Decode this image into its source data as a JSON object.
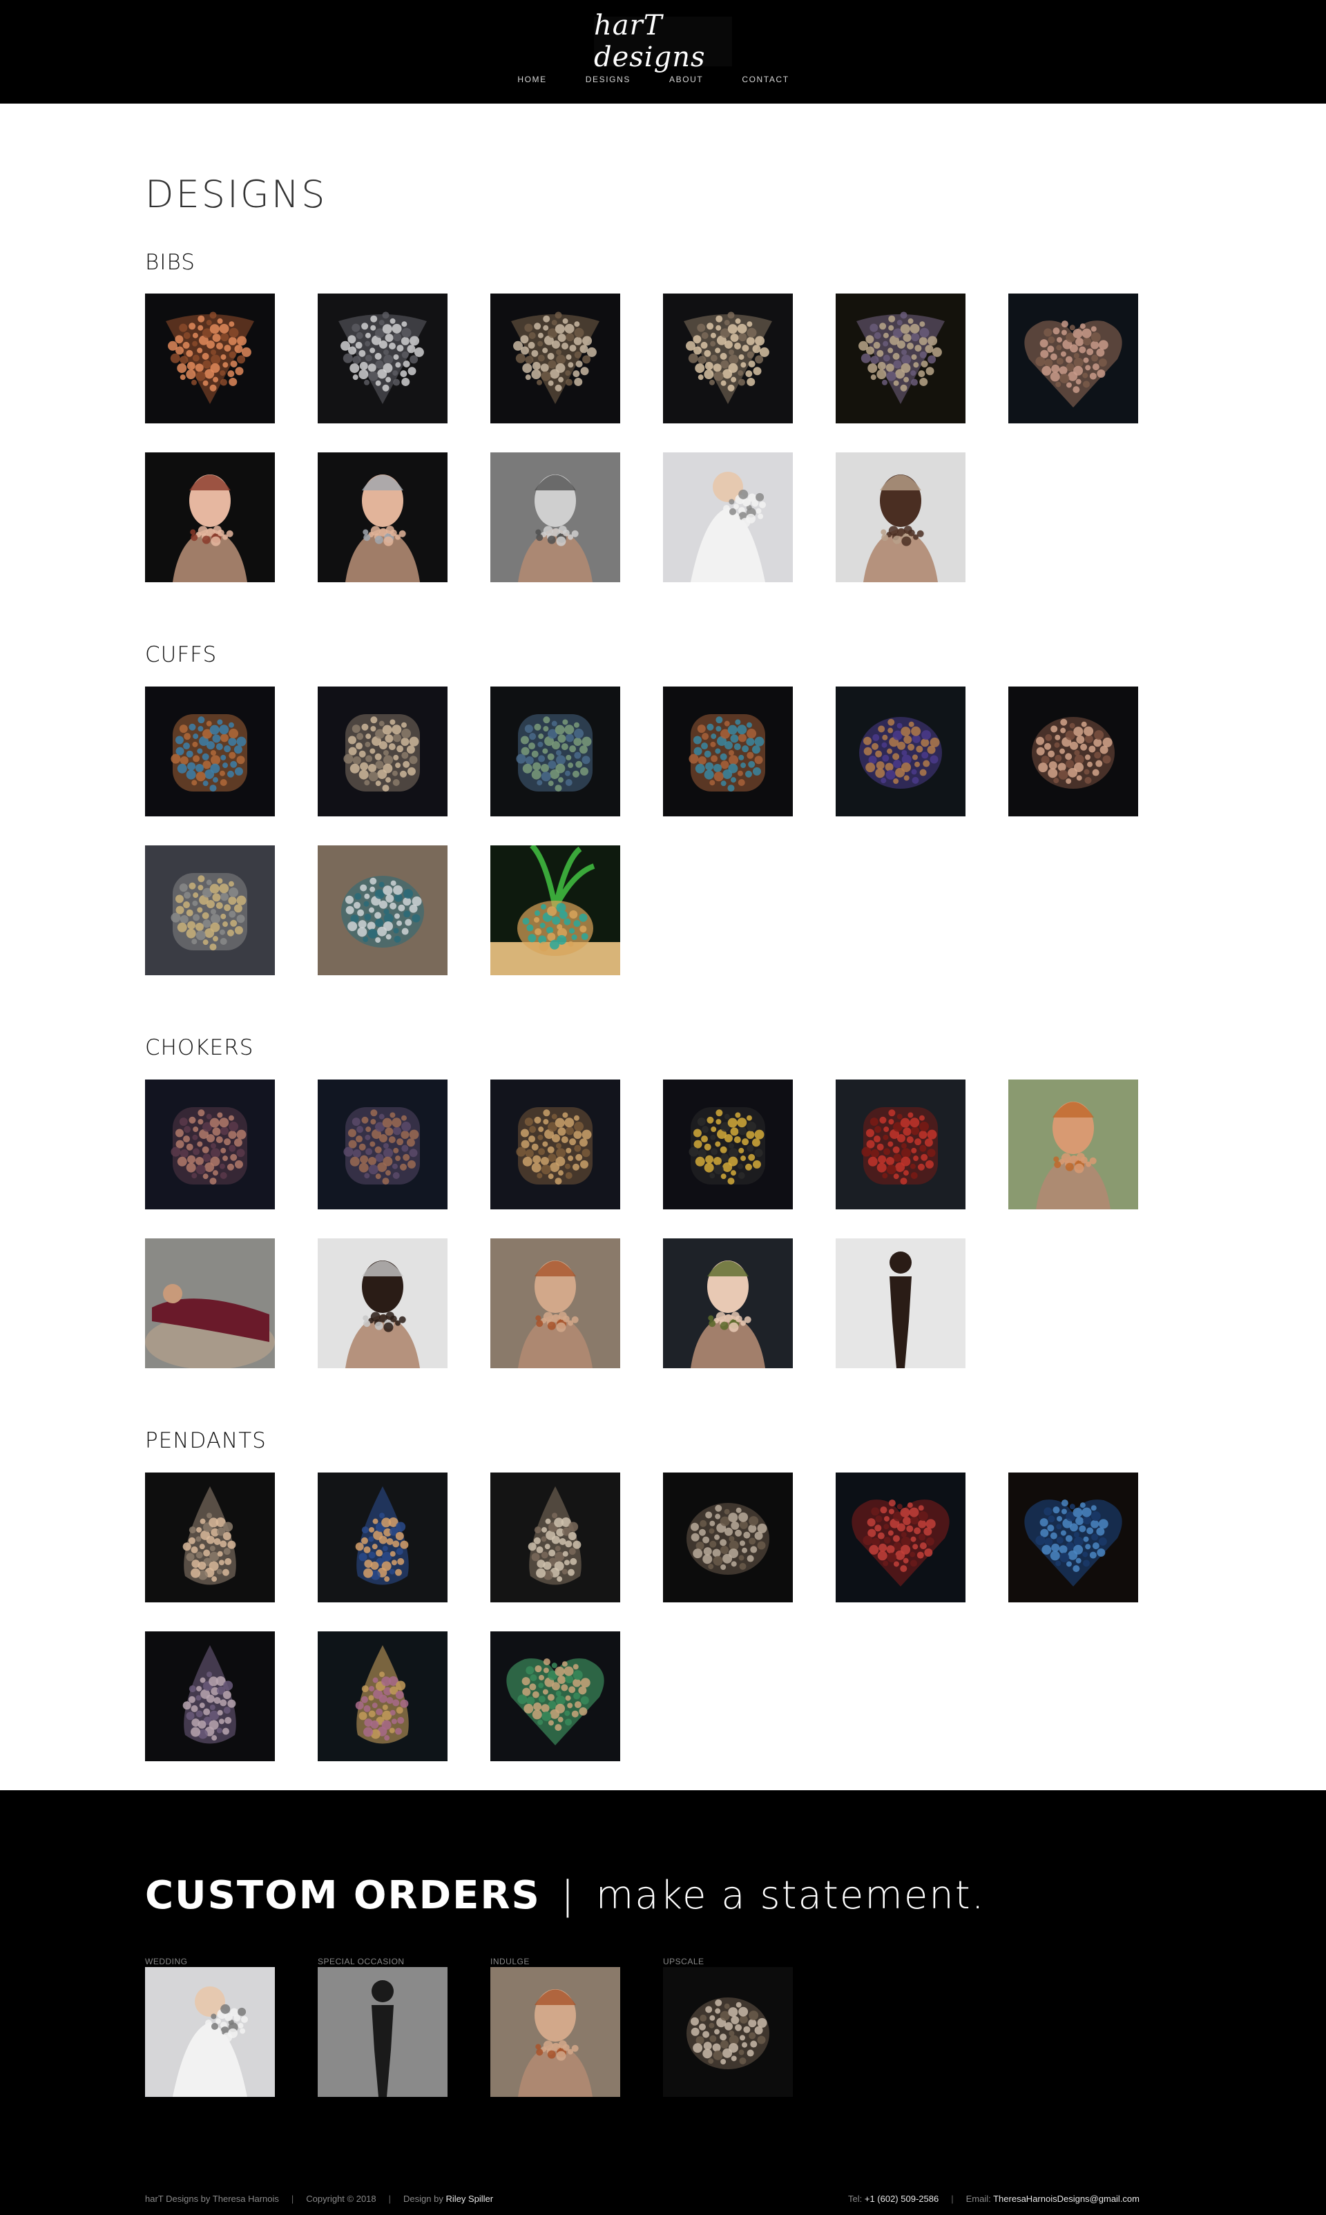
{
  "header": {
    "logo_text": "harT designs",
    "nav": [
      "HOME",
      "DESIGNS",
      "ABOUT",
      "CONTACT"
    ]
  },
  "page": {
    "title": "DESIGNS",
    "sections": [
      {
        "title": "BIBS",
        "items": [
          {
            "bg": "#0c0c0e",
            "kind": "bib",
            "c1": "#e08a5a",
            "c2": "#8a4a2a"
          },
          {
            "bg": "#121214",
            "kind": "bib",
            "c1": "#cfcfd0",
            "c2": "#5a5a60"
          },
          {
            "bg": "#0d0d10",
            "kind": "bib",
            "c1": "#c9b9a2",
            "c2": "#6e5a45"
          },
          {
            "bg": "#101012",
            "kind": "bib",
            "c1": "#d8c3a5",
            "c2": "#7a6a58"
          },
          {
            "bg": "#14120c",
            "kind": "bib",
            "c1": "#b9a68a",
            "c2": "#6a5c7a"
          },
          {
            "bg": "#0d1218",
            "kind": "heart",
            "c1": "#c89a8a",
            "c2": "#7a5a4a"
          },
          {
            "bg": "#0d0d0d",
            "kind": "portrait",
            "c1": "#e6b7a0",
            "c2": "#8a3a2a"
          },
          {
            "bg": "#0f0f10",
            "kind": "portrait",
            "c1": "#e2b49a",
            "c2": "#a0a6ae"
          },
          {
            "bg": "#7a7a7a",
            "kind": "portrait",
            "c1": "#cfcfcf",
            "c2": "#505050"
          },
          {
            "bg": "#d9d9dc",
            "kind": "bride",
            "c1": "#f2f2f2",
            "c2": "#8a8a8a"
          },
          {
            "bg": "#dcdcdc",
            "kind": "portrait",
            "c1": "#4a2e22",
            "c2": "#b8a08a"
          }
        ]
      },
      {
        "title": "CUFFS",
        "items": [
          {
            "bg": "#0c0c10",
            "kind": "cuff",
            "c1": "#3c7fa8",
            "c2": "#b06a3a"
          },
          {
            "bg": "#101016",
            "kind": "cuff",
            "c1": "#cdb69a",
            "c2": "#8a7a6a"
          },
          {
            "bg": "#0e1012",
            "kind": "cuff",
            "c1": "#7a9a7a",
            "c2": "#4a6a8a"
          },
          {
            "bg": "#0c0c0e",
            "kind": "cuff",
            "c1": "#3a86a0",
            "c2": "#a8623a"
          },
          {
            "bg": "#0f1418",
            "kind": "round",
            "c1": "#b07a4a",
            "c2": "#4a3a8a"
          },
          {
            "bg": "#0c0c0e",
            "kind": "round",
            "c1": "#d2a38a",
            "c2": "#7a5040"
          },
          {
            "bg": "#3a3c44",
            "kind": "cuff",
            "c1": "#c9b07a",
            "c2": "#8a8a8a"
          },
          {
            "bg": "#7a6a5a",
            "kind": "round",
            "c1": "#cfd3d6",
            "c2": "#2a6a78"
          },
          {
            "bg": "#0e1a0e",
            "kind": "plant",
            "c1": "#2aa89a",
            "c2": "#d8a45a"
          }
        ]
      },
      {
        "title": "CHOKERS",
        "items": [
          {
            "bg": "#121420",
            "kind": "cuff",
            "c1": "#b07a6a",
            "c2": "#5a3a4a"
          },
          {
            "bg": "#111622",
            "kind": "cuff",
            "c1": "#9a6a52",
            "c2": "#5a4a6a"
          },
          {
            "bg": "#12141c",
            "kind": "cuff",
            "c1": "#c9a06a",
            "c2": "#7a5a3a"
          },
          {
            "bg": "#0e0e14",
            "kind": "cuff",
            "c1": "#d4aa3a",
            "c2": "#2a2a2a"
          },
          {
            "bg": "#1a1e24",
            "kind": "cuff",
            "c1": "#c2342a",
            "c2": "#7a1a14"
          },
          {
            "bg": "#8a9a70",
            "kind": "portrait",
            "c1": "#d89a72",
            "c2": "#c0682a"
          },
          {
            "bg": "#8a8a86",
            "kind": "reclining",
            "c1": "#6a1a2a",
            "c2": "#a89a8a"
          },
          {
            "bg": "#e2e2e2",
            "kind": "portrait",
            "c1": "#2a1c16",
            "c2": "#c8c8c8"
          },
          {
            "bg": "#8a7a6a",
            "kind": "portrait",
            "c1": "#d2a88a",
            "c2": "#a8542a"
          },
          {
            "bg": "#1e2228",
            "kind": "portrait",
            "c1": "#e8c9b4",
            "c2": "#5a6a2a"
          },
          {
            "bg": "#e6e6e6",
            "kind": "figure",
            "c1": "#2a1c16",
            "c2": "#5a4030"
          }
        ]
      },
      {
        "title": "PENDANTS",
        "items": [
          {
            "bg": "#0e0e0e",
            "kind": "drop",
            "c1": "#d8b89a",
            "c2": "#8a7a6a"
          },
          {
            "bg": "#121416",
            "kind": "drop",
            "c1": "#d6a06a",
            "c2": "#2a4a8a"
          },
          {
            "bg": "#141414",
            "kind": "drop",
            "c1": "#cfc2ae",
            "c2": "#7a6a5a"
          },
          {
            "bg": "#0c0c0c",
            "kind": "round",
            "c1": "#b8aa9a",
            "c2": "#6a5a4a"
          },
          {
            "bg": "#0c1016",
            "kind": "heart",
            "c1": "#c2403a",
            "c2": "#6a1a1a"
          },
          {
            "bg": "#100c0a",
            "kind": "heart",
            "c1": "#4a86c2",
            "c2": "#1a3a6a"
          },
          {
            "bg": "#0c0c0e",
            "kind": "drop",
            "c1": "#b8a6b0",
            "c2": "#6a5a7a"
          },
          {
            "bg": "#0e1418",
            "kind": "drop",
            "c1": "#a86a8a",
            "c2": "#c29a5a"
          },
          {
            "bg": "#0e1014",
            "kind": "heart",
            "c1": "#c9a57a",
            "c2": "#3a8a5a"
          }
        ]
      }
    ]
  },
  "footer": {
    "custom_orders_strong": "CUSTOM ORDERS",
    "custom_orders_sep": "|",
    "custom_orders_light": "make a statement.",
    "categories": [
      {
        "label": "WEDDING",
        "bg": "#d6d6d8",
        "kind": "bride",
        "c1": "#f2f2f2",
        "c2": "#7a7a7a"
      },
      {
        "label": "SPECIAL OCCASION",
        "bg": "#8a8a8a",
        "kind": "figure",
        "c1": "#1a1a1a",
        "c2": "#c8c8c8"
      },
      {
        "label": "INDULGE",
        "bg": "#8a7a6a",
        "kind": "portrait",
        "c1": "#d2a88a",
        "c2": "#a8542a"
      },
      {
        "label": "UPSCALE",
        "bg": "#0c0c0c",
        "kind": "round",
        "c1": "#c8b8a8",
        "c2": "#6a5a4a"
      }
    ],
    "credit": "harT Designs by Theresa Harnois",
    "copyright": "Copyright © 2018",
    "design_by_prefix": "Design by",
    "designer": "Riley Spiller",
    "tel_prefix": "Tel:",
    "tel": "+1 (602) 509-2586",
    "email_prefix": "Email:",
    "email": "TheresaHarnoisDesigns@gmail.com"
  }
}
